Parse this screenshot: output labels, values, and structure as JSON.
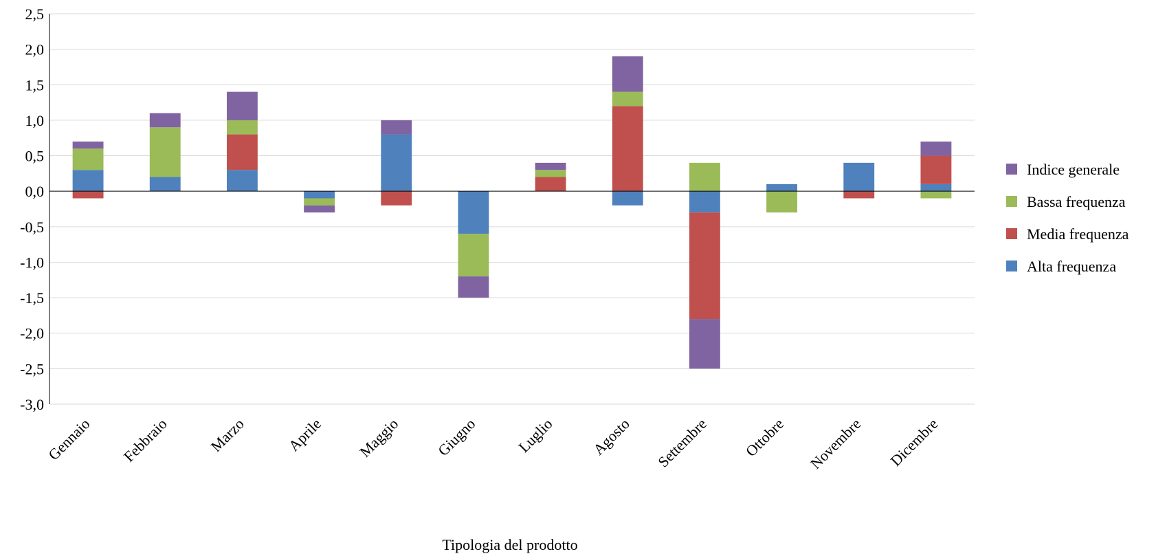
{
  "chart_data": {
    "type": "bar",
    "stacked": true,
    "title": "",
    "xlabel": "Tipologia del prodotto",
    "ylabel": "",
    "ylim": [
      -3.0,
      2.5
    ],
    "ytick_step": 0.5,
    "grid": true,
    "legend_position": "right",
    "categories": [
      "Gennaio",
      "Febbraio",
      "Marzo",
      "Aprile",
      "Maggio",
      "Giugno",
      "Luglio",
      "Agosto",
      "Settembre",
      "Ottobre",
      "Novembre",
      "Dicembre"
    ],
    "series": [
      {
        "name": "Alta frequenza",
        "color": "#4f81bd",
        "values": [
          0.3,
          0.2,
          0.3,
          -0.1,
          0.8,
          -0.6,
          0.0,
          -0.2,
          -0.3,
          0.1,
          0.4,
          0.1
        ]
      },
      {
        "name": "Media frequenza",
        "color": "#c0504d",
        "values": [
          -0.1,
          0.0,
          0.5,
          0.0,
          -0.2,
          0.0,
          0.2,
          1.2,
          -1.5,
          0.0,
          -0.1,
          0.4
        ]
      },
      {
        "name": "Bassa frequenza",
        "color": "#9bbb59",
        "values": [
          0.3,
          0.7,
          0.2,
          -0.1,
          0.0,
          -0.6,
          0.1,
          0.2,
          0.4,
          -0.3,
          0.0,
          -0.1
        ]
      },
      {
        "name": "Indice generale",
        "color": "#8064a2",
        "values": [
          0.1,
          0.2,
          0.4,
          -0.1,
          0.2,
          -0.3,
          0.1,
          0.5,
          -0.7,
          0.0,
          0.0,
          0.2
        ]
      }
    ],
    "legend_order": [
      "Indice generale",
      "Bassa frequenza",
      "Media frequenza",
      "Alta frequenza"
    ]
  }
}
